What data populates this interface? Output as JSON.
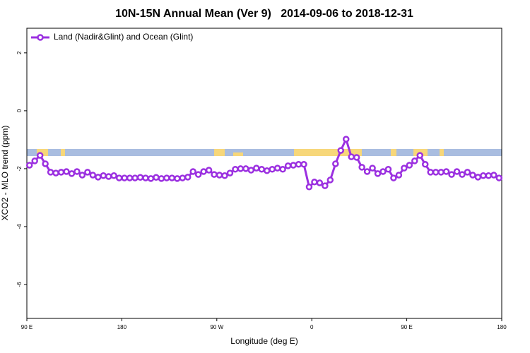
{
  "chart_data": {
    "type": "line",
    "title": "10N-15N Annual Mean (Ver 9)   2014-09-06 to 2018-12-31",
    "x_label": "Longitude (deg E)",
    "y_label": "XCO2 - MLO trend (ppm)",
    "xlim": [
      90,
      540
    ],
    "ylim": [
      -7.17,
      2.85
    ],
    "xticks": [
      {
        "value": 90,
        "label": "90 E"
      },
      180,
      {
        "value": 270,
        "label": "90 W"
      },
      {
        "value": 360,
        "label": "0"
      },
      {
        "value": 450,
        "label": "90 E"
      },
      {
        "value": 540,
        "label": "180"
      }
    ],
    "yticks": [
      2,
      0,
      -2,
      -4,
      -6
    ],
    "legend": "top-left",
    "x": [
      92.5,
      97.5,
      102.5,
      107.5,
      112.5,
      117.5,
      122.5,
      127.5,
      132.5,
      137.5,
      142.5,
      147.5,
      152.5,
      157.5,
      162.5,
      167.5,
      172.5,
      177.5,
      182.5,
      187.5,
      192.5,
      197.5,
      202.5,
      207.5,
      212.5,
      217.5,
      222.5,
      227.5,
      232.5,
      237.5,
      242.5,
      247.5,
      252.5,
      257.5,
      262.5,
      267.5,
      272.5,
      277.5,
      282.5,
      287.5,
      292.5,
      297.5,
      302.5,
      307.5,
      312.5,
      317.5,
      322.5,
      327.5,
      332.5,
      337.5,
      342.5,
      347.5,
      352.5,
      357.5,
      362.5,
      367.5,
      372.5,
      377.5,
      382.5,
      387.5,
      392.5,
      397.5,
      402.5,
      407.5,
      412.5,
      417.5,
      422.5,
      427.5,
      432.5,
      437.5,
      442.5,
      447.5,
      452.5,
      457.5,
      462.5,
      467.5,
      472.5,
      477.5,
      482.5,
      487.5,
      492.5,
      497.5,
      502.5,
      507.5,
      512.5,
      517.5,
      522.5,
      527.5,
      532.5,
      537.5
    ],
    "series": [
      {
        "name": "Land (Nadir&Glint) and Ocean (Glint)",
        "color": "#9b30e0",
        "values": [
          -1.88,
          -1.73,
          -1.54,
          -1.83,
          -2.12,
          -2.15,
          -2.12,
          -2.1,
          -2.17,
          -2.1,
          -2.22,
          -2.12,
          -2.22,
          -2.29,
          -2.24,
          -2.27,
          -2.24,
          -2.32,
          -2.32,
          -2.32,
          -2.32,
          -2.3,
          -2.32,
          -2.34,
          -2.3,
          -2.34,
          -2.32,
          -2.32,
          -2.34,
          -2.32,
          -2.29,
          -2.1,
          -2.2,
          -2.1,
          -2.05,
          -2.2,
          -2.22,
          -2.24,
          -2.15,
          -2.02,
          -2.0,
          -2.0,
          -2.05,
          -1.98,
          -2.02,
          -2.07,
          -2.02,
          -1.98,
          -2.02,
          -1.9,
          -1.88,
          -1.85,
          -1.85,
          -2.63,
          -2.46,
          -2.49,
          -2.59,
          -2.39,
          -1.83,
          -1.37,
          -0.98,
          -1.59,
          -1.61,
          -1.95,
          -2.1,
          -1.98,
          -2.17,
          -2.1,
          -2.02,
          -2.32,
          -2.22,
          -1.98,
          -1.88,
          -1.73,
          -1.54,
          -1.85,
          -2.12,
          -2.12,
          -2.12,
          -2.1,
          -2.2,
          -2.1,
          -2.2,
          -2.12,
          -2.22,
          -2.29,
          -2.24,
          -2.24,
          -2.22,
          -2.32
        ]
      }
    ]
  }
}
